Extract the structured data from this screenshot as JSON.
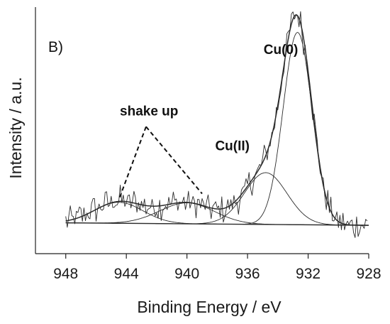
{
  "chart_data": {
    "type": "line",
    "panel_label": "B)",
    "xlabel": "Binding Energy / eV",
    "ylabel": "Intensity / a.u.",
    "x_reversed": true,
    "xlim": [
      950,
      928
    ],
    "ylim": [
      0,
      1
    ],
    "x_ticks": [
      948,
      944,
      940,
      936,
      932,
      928
    ],
    "y_ticks": [],
    "grid": false,
    "legend": "none",
    "baseline": {
      "start": [
        948,
        0.125
      ],
      "end": [
        928,
        0.115
      ]
    },
    "components": [
      {
        "id": "cu0",
        "center": 932.7,
        "height": 0.78,
        "sigma": 0.95
      },
      {
        "id": "cu2",
        "center": 934.8,
        "height": 0.21,
        "sigma": 1.4
      },
      {
        "id": "shake1",
        "center": 944.5,
        "height": 0.085,
        "sigma": 1.6
      },
      {
        "id": "shake2",
        "center": 940.0,
        "height": 0.085,
        "sigma": 1.8
      }
    ],
    "noise_amplitude": 0.05,
    "annotations": [
      {
        "text": "Cu(0)",
        "x": 933.8,
        "y": 0.81
      },
      {
        "text": "Cu(II)",
        "x": 937.0,
        "y": 0.42
      },
      {
        "text": "shake up",
        "x": 942.5,
        "y": 0.56
      }
    ],
    "colors": {
      "line": "#2b2b2b",
      "axis": "#222222"
    }
  }
}
